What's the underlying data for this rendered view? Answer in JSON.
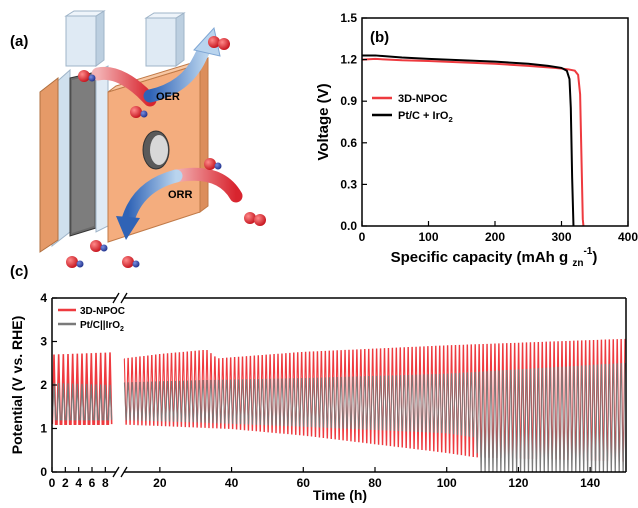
{
  "panels": {
    "a": {
      "label": "(a)",
      "oer_label": "OER",
      "orr_label": "ORR"
    },
    "b": {
      "label": "(b)"
    },
    "c": {
      "label": "(c)"
    }
  },
  "colors": {
    "npoc": "#ee3a3f",
    "ptc": "#000000",
    "ptc_cycle": "#7a7a7a",
    "electrode": "#f4ad7e",
    "molecule_red": "#e0202a",
    "molecule_blue": "#2a3fa0",
    "arrow_red": "#d8242e",
    "arrow_blue": "#4a7cc4"
  },
  "chart_data": [
    {
      "panel": "b",
      "type": "line",
      "xlabel": "Specific capacity (mAh g",
      "xlabel_sub": "zn",
      "xlabel_sup": "-1",
      "xlabel_close": ")",
      "ylabel": "Voltage (V)",
      "xlim": [
        0,
        400
      ],
      "ylim": [
        0.0,
        1.5
      ],
      "xticks": [
        0,
        100,
        200,
        300,
        400
      ],
      "yticks": [
        0.0,
        0.3,
        0.6,
        0.9,
        1.2,
        1.5
      ],
      "legend_position": "center-left",
      "series": [
        {
          "name": "3D-NPOC",
          "color": "#ee3a3f",
          "x": [
            0,
            20,
            60,
            100,
            150,
            200,
            250,
            290,
            310,
            320,
            325,
            328,
            330,
            332,
            333
          ],
          "y": [
            1.2,
            1.205,
            1.195,
            1.19,
            1.18,
            1.17,
            1.155,
            1.14,
            1.13,
            1.12,
            1.09,
            0.95,
            0.5,
            0.05,
            0.0
          ]
        },
        {
          "name": "Pt/C + IrO",
          "name_sub": "2",
          "color": "#000000",
          "x": [
            0,
            20,
            60,
            100,
            150,
            200,
            250,
            280,
            300,
            308,
            312,
            314,
            316,
            318
          ],
          "y": [
            1.23,
            1.23,
            1.215,
            1.205,
            1.195,
            1.185,
            1.17,
            1.155,
            1.14,
            1.12,
            1.06,
            0.85,
            0.35,
            0.0
          ]
        }
      ]
    },
    {
      "panel": "c",
      "type": "line",
      "xlabel": "Time (h)",
      "ylabel": "Potential (V vs. RHE)",
      "ylim": [
        0,
        4
      ],
      "yticks": [
        0,
        1,
        2,
        3,
        4
      ],
      "xticks_left": [
        0,
        2,
        4,
        6,
        8
      ],
      "xticks_right": [
        20,
        40,
        60,
        80,
        100,
        120,
        140
      ],
      "axis_break_between": [
        9,
        10
      ],
      "xlim_left": [
        0,
        9
      ],
      "xlim_right": [
        10,
        150
      ],
      "legend_position": "top-left",
      "series": [
        {
          "name": "3D-NPOC",
          "color": "#ee3a3f",
          "charge_envelope": {
            "x": [
              0,
              9,
              10,
              20,
              33,
              36,
              60,
              100,
              150
            ],
            "y": [
              2.7,
              2.75,
              2.6,
              2.7,
              2.8,
              2.6,
              2.75,
              2.9,
              3.05
            ]
          },
          "discharge_envelope": {
            "x": [
              0,
              9,
              10,
              20,
              40,
              60,
              80,
              100,
              108,
              150
            ],
            "y": [
              1.1,
              1.1,
              1.1,
              1.07,
              1.0,
              0.85,
              0.65,
              0.45,
              0.35,
              0.25
            ]
          }
        },
        {
          "name": "Pt/C||IrO",
          "name_sub": "2",
          "color": "#7a7a7a",
          "charge_envelope": {
            "x": [
              0,
              9,
              10,
              30,
              60,
              100,
              150
            ],
            "y": [
              2.05,
              2.0,
              2.05,
              2.1,
              2.15,
              2.25,
              2.5
            ]
          },
          "discharge_envelope": {
            "x": [
              0,
              9,
              10,
              30,
              60,
              100,
              108,
              109,
              150
            ],
            "y": [
              1.2,
              1.2,
              1.2,
              1.15,
              1.05,
              0.9,
              0.8,
              0.0,
              0.0
            ]
          }
        }
      ]
    }
  ]
}
